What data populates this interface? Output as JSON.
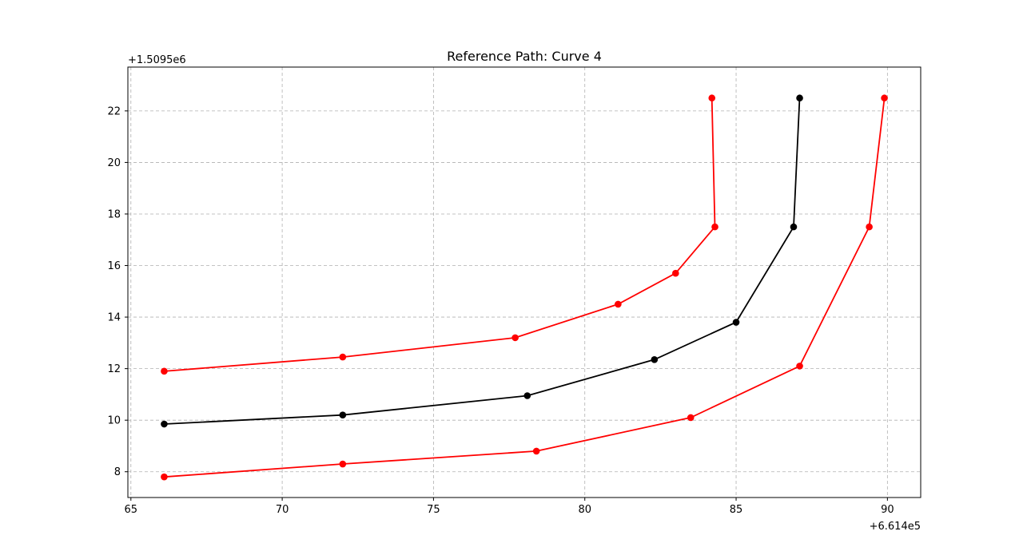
{
  "chart_data": {
    "type": "line",
    "title": "Reference Path: Curve 4",
    "xlabel": "",
    "ylabel": "",
    "x_offset_label": "+6.614e5",
    "y_offset_label": "+1.5095e6",
    "xlim": [
      64.9,
      91.1
    ],
    "ylim": [
      7.0,
      23.7
    ],
    "x_ticks": [
      65,
      70,
      75,
      80,
      85,
      90
    ],
    "x_tick_labels": [
      "65",
      "70",
      "75",
      "80",
      "85",
      "90"
    ],
    "y_ticks": [
      8,
      10,
      12,
      14,
      16,
      18,
      20,
      22
    ],
    "y_tick_labels": [
      "8",
      "10",
      "12",
      "14",
      "16",
      "18",
      "20",
      "22"
    ],
    "grid": true,
    "legend": "none",
    "series": [
      {
        "color": "#ff0000",
        "marker": "circle",
        "points": [
          [
            66.1,
            11.9
          ],
          [
            72.0,
            12.45
          ],
          [
            77.7,
            13.2
          ],
          [
            81.1,
            14.5
          ],
          [
            83.0,
            15.7
          ],
          [
            84.3,
            17.5
          ],
          [
            84.2,
            22.5
          ]
        ]
      },
      {
        "color": "#000000",
        "marker": "circle",
        "points": [
          [
            66.1,
            9.85
          ],
          [
            72.0,
            10.2
          ],
          [
            78.1,
            10.95
          ],
          [
            82.3,
            12.35
          ],
          [
            85.0,
            13.8
          ],
          [
            86.9,
            17.5
          ],
          [
            87.1,
            22.5
          ]
        ]
      },
      {
        "color": "#ff0000",
        "marker": "circle",
        "points": [
          [
            66.1,
            7.8
          ],
          [
            72.0,
            8.3
          ],
          [
            78.4,
            8.8
          ],
          [
            83.5,
            10.1
          ],
          [
            87.1,
            12.1
          ],
          [
            89.4,
            17.5
          ],
          [
            89.9,
            22.5
          ]
        ]
      }
    ]
  }
}
